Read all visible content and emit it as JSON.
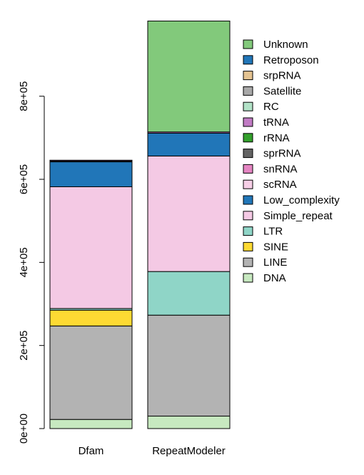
{
  "chart_data": {
    "type": "bar",
    "stacked": true,
    "title": "",
    "xlabel": "",
    "ylabel": "",
    "ylim": [
      0,
      980000
    ],
    "y_ticks": [
      0,
      200000,
      400000,
      600000,
      800000
    ],
    "y_tick_labels": [
      "0e+00",
      "2e+05",
      "4e+05",
      "6e+05",
      "8e+05"
    ],
    "categories": [
      "Dfam",
      "RepeatModeler"
    ],
    "legend_position": "right",
    "series": [
      {
        "name": "DNA",
        "color": "#c7e9c0",
        "values": [
          22000,
          30000
        ]
      },
      {
        "name": "LINE",
        "color": "#b3b3b3",
        "values": [
          225000,
          243000
        ]
      },
      {
        "name": "SINE",
        "color": "#fdda33",
        "values": [
          38000,
          0
        ]
      },
      {
        "name": "LTR",
        "color": "#8fd5c7",
        "values": [
          4000,
          105000
        ]
      },
      {
        "name": "Simple_repeat",
        "color": "#f4c9e4",
        "values": [
          293000,
          278000
        ]
      },
      {
        "name": "Low_complexity",
        "color": "#2176b8",
        "values": [
          60000,
          55000
        ]
      },
      {
        "name": "scRNA",
        "color": "#f6cee6",
        "values": [
          0,
          0
        ]
      },
      {
        "name": "snRNA",
        "color": "#e485c2",
        "values": [
          0,
          0
        ]
      },
      {
        "name": "sprRNA",
        "color": "#636363",
        "values": [
          2000,
          0
        ]
      },
      {
        "name": "rRNA",
        "color": "#33a02c",
        "values": [
          0,
          0
        ]
      },
      {
        "name": "tRNA",
        "color": "#c17bc4",
        "values": [
          2000,
          3000
        ]
      },
      {
        "name": "RC",
        "color": "#b2e2c7",
        "values": [
          0,
          0
        ]
      },
      {
        "name": "Satellite",
        "color": "#a8a8a8",
        "values": [
          0,
          0
        ]
      },
      {
        "name": "srpRNA",
        "color": "#e4c391",
        "values": [
          0,
          0
        ]
      },
      {
        "name": "Retroposon",
        "color": "#2176b8",
        "values": [
          0,
          0
        ]
      },
      {
        "name": "Unknown",
        "color": "#82c97b",
        "values": [
          0,
          267000
        ]
      }
    ]
  }
}
